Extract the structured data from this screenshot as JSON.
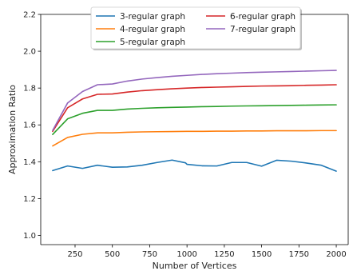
{
  "chart_data": {
    "type": "line",
    "xlabel": "Number of Vertices",
    "ylabel": "Approximation Ratio",
    "xlim": [
      20,
      2080
    ],
    "ylim": [
      0.95,
      2.2
    ],
    "xticks": [
      250,
      500,
      750,
      1000,
      1250,
      1500,
      1750,
      2000
    ],
    "xtick_labels": [
      "250",
      "500",
      "750",
      "1000",
      "1250",
      "1500",
      "1750",
      "2000"
    ],
    "yticks": [
      1.0,
      1.2,
      1.4,
      1.6,
      1.8,
      2.0,
      2.2
    ],
    "ytick_labels": [
      "1.0",
      "1.2",
      "1.4",
      "1.6",
      "1.8",
      "2.0",
      "2.2"
    ],
    "grid": false,
    "legend_position": "top-center",
    "legend_columns": 2,
    "x": [
      100,
      200,
      300,
      400,
      500,
      600,
      700,
      800,
      900,
      1000,
      1100,
      1200,
      1300,
      1400,
      1500,
      1600,
      1700,
      1800,
      1900,
      2000
    ],
    "series": [
      {
        "name": "3-regular graph",
        "color": "#1f77b4",
        "x": [
          100,
          200,
          300,
          400,
          500,
          600,
          700,
          800,
          900,
          990,
          1000,
          1100,
          1200,
          1300,
          1400,
          1500,
          1600,
          1700,
          1800,
          1900,
          2000
        ],
        "values": [
          1.352,
          1.377,
          1.364,
          1.381,
          1.37,
          1.372,
          1.381,
          1.396,
          1.409,
          1.394,
          1.386,
          1.378,
          1.377,
          1.396,
          1.396,
          1.376,
          1.408,
          1.403,
          1.393,
          1.381,
          1.349
        ]
      },
      {
        "name": "4-regular graph",
        "color": "#ff7f0e",
        "values": [
          1.486,
          1.532,
          1.549,
          1.557,
          1.557,
          1.56,
          1.562,
          1.563,
          1.564,
          1.565,
          1.565,
          1.566,
          1.566,
          1.567,
          1.567,
          1.568,
          1.568,
          1.568,
          1.569,
          1.569
        ]
      },
      {
        "name": "5-regular graph",
        "color": "#2ca02c",
        "values": [
          1.548,
          1.633,
          1.663,
          1.679,
          1.679,
          1.686,
          1.69,
          1.693,
          1.695,
          1.697,
          1.699,
          1.7,
          1.702,
          1.703,
          1.704,
          1.705,
          1.706,
          1.707,
          1.708,
          1.709
        ]
      },
      {
        "name": "6-regular graph",
        "color": "#d62728",
        "values": [
          1.565,
          1.693,
          1.741,
          1.766,
          1.768,
          1.778,
          1.786,
          1.791,
          1.796,
          1.8,
          1.803,
          1.805,
          1.807,
          1.809,
          1.811,
          1.812,
          1.813,
          1.815,
          1.816,
          1.818
        ]
      },
      {
        "name": "7-regular graph",
        "color": "#9467bd",
        "values": [
          1.57,
          1.719,
          1.781,
          1.818,
          1.822,
          1.838,
          1.849,
          1.857,
          1.864,
          1.869,
          1.874,
          1.878,
          1.881,
          1.884,
          1.886,
          1.888,
          1.89,
          1.892,
          1.894,
          1.896
        ]
      }
    ]
  }
}
